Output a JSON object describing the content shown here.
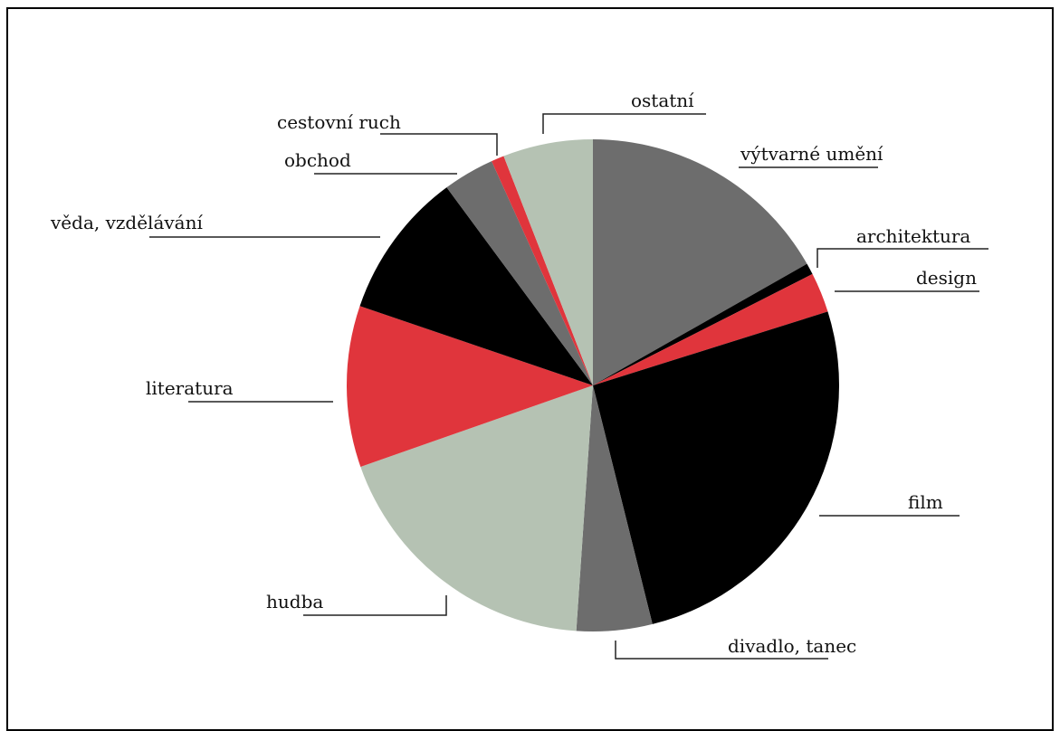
{
  "chart_data": {
    "type": "pie",
    "title": "",
    "colors": {
      "grey": "#6d6d6d",
      "black": "#000000",
      "red": "#e0353c",
      "sage": "#b5c2b3"
    },
    "slices": [
      {
        "label": "výtvarné umění",
        "value": 17.9,
        "color": "#6d6d6d"
      },
      {
        "label": "architektura",
        "value": 0.8,
        "color": "#000000"
      },
      {
        "label": "design",
        "value": 2.8,
        "color": "#e0353c"
      },
      {
        "label": "film",
        "value": 27.7,
        "color": "#000000"
      },
      {
        "label": "divadlo, tanec",
        "value": 5.3,
        "color": "#6d6d6d"
      },
      {
        "label": "hudba",
        "value": 19.8,
        "color": "#b5c2b3"
      },
      {
        "label": "literatura",
        "value": 11.3,
        "color": "#e0353c"
      },
      {
        "label": "věda, vzdělávání",
        "value": 10.3,
        "color": "#000000"
      },
      {
        "label": "obchod",
        "value": 3.6,
        "color": "#6d6d6d"
      },
      {
        "label": "cestovní ruch",
        "value": 0.9,
        "color": "#e0353c"
      },
      {
        "label": "ostatní",
        "value": 6.3,
        "color": "#b5c2b3"
      }
    ]
  }
}
